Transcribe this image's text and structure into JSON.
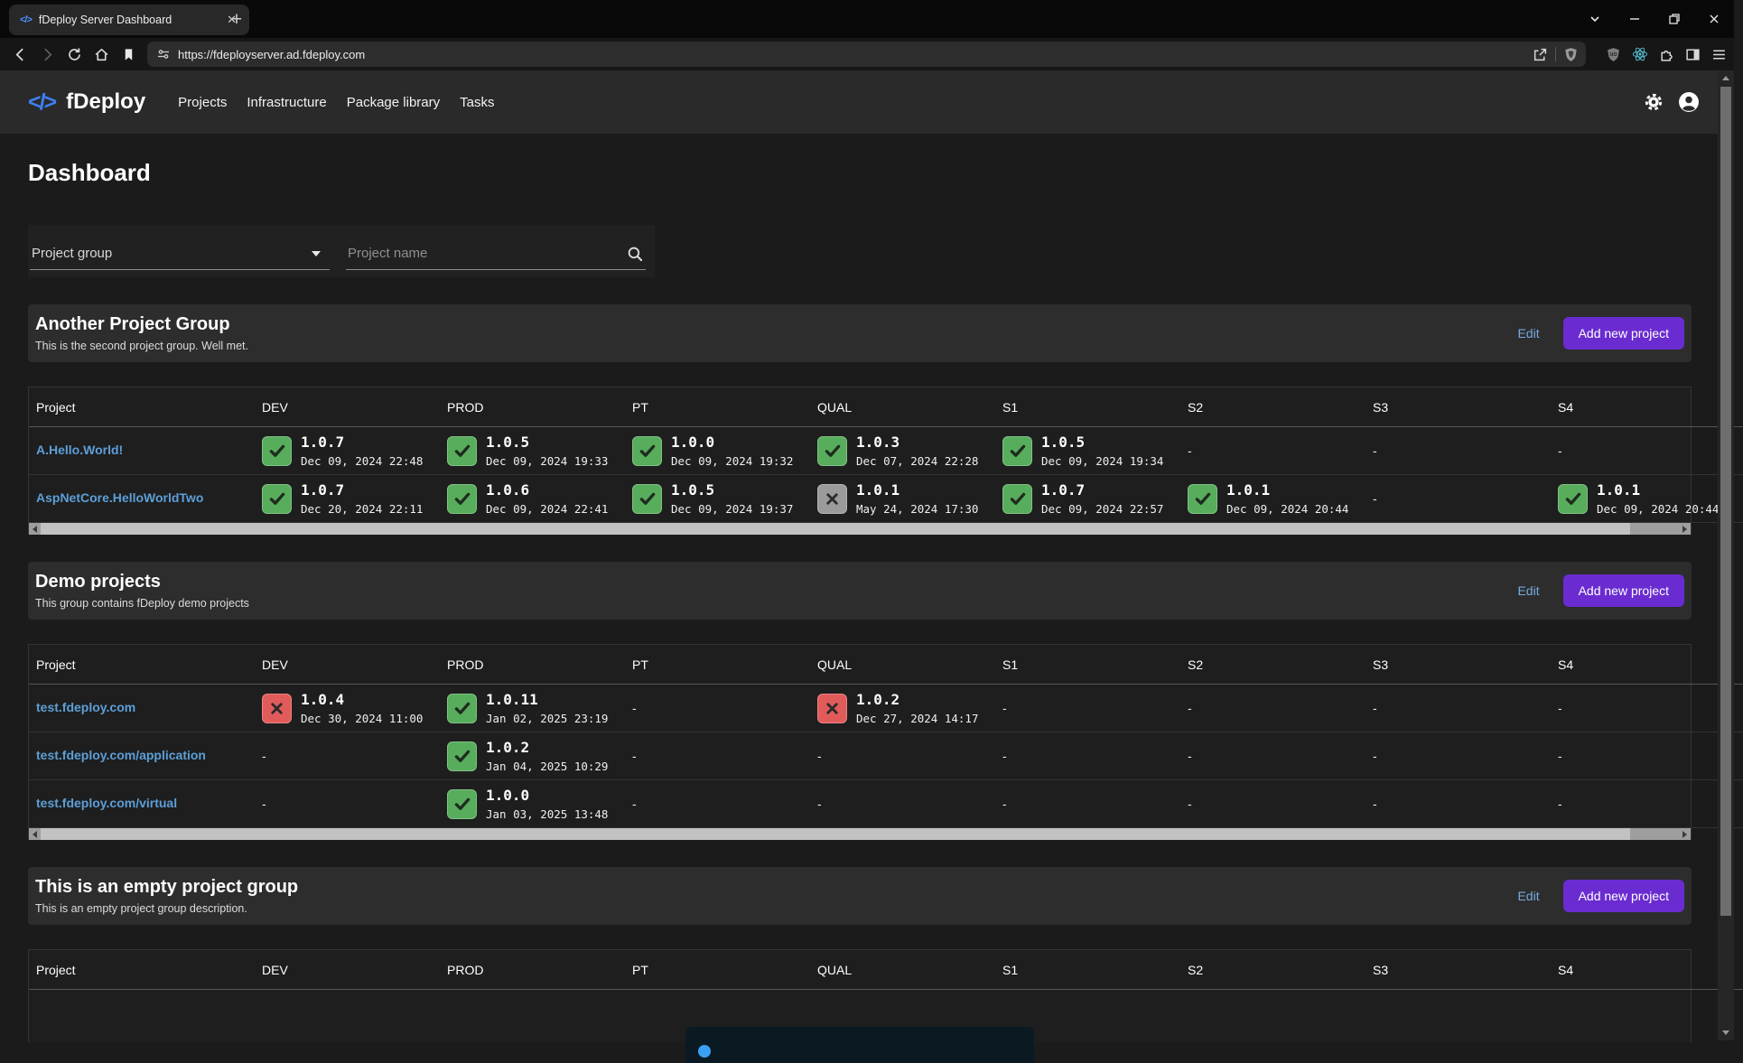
{
  "browser": {
    "tab_title": "fDeploy Server Dashboard",
    "url": "https://fdeployserver.ad.fdeploy.com"
  },
  "labels": {
    "edit": "Edit",
    "add_new_project": "Add new project"
  },
  "app": {
    "brand": "fDeploy",
    "nav": [
      "Projects",
      "Infrastructure",
      "Package library",
      "Tasks"
    ],
    "page_title": "Dashboard",
    "filters": {
      "group_label": "Project group",
      "name_placeholder": "Project name"
    }
  },
  "columns": [
    "Project",
    "DEV",
    "PROD",
    "PT",
    "QUAL",
    "S1",
    "S2",
    "S3",
    "S4"
  ],
  "colors": {
    "accent_purple": "#6a2cd0",
    "status_ok_green": "#57ad5c",
    "status_fail_red": "#e25b5b",
    "status_stale_gray": "#9b9b9b",
    "project_link_blue": "#5c9fd8"
  },
  "groups": [
    {
      "name": "Another Project Group",
      "description": "This is the second project group. Well met.",
      "has_info_alert": false,
      "projects": [
        {
          "name": "A.Hello.World!",
          "cells": [
            {
              "status": "ok",
              "version": "1.0.7",
              "date": "Dec 09, 2024 22:48"
            },
            {
              "status": "ok",
              "version": "1.0.5",
              "date": "Dec 09, 2024 19:33"
            },
            {
              "status": "ok",
              "version": "1.0.0",
              "date": "Dec 09, 2024 19:32"
            },
            {
              "status": "ok",
              "version": "1.0.3",
              "date": "Dec 07, 2024 22:28"
            },
            {
              "status": "ok",
              "version": "1.0.5",
              "date": "Dec 09, 2024 19:34"
            },
            {
              "status": "none"
            },
            {
              "status": "none"
            },
            {
              "status": "none"
            }
          ]
        },
        {
          "name": "AspNetCore.HelloWorldTwo",
          "cells": [
            {
              "status": "ok",
              "version": "1.0.7",
              "date": "Dec 20, 2024 22:11"
            },
            {
              "status": "ok",
              "version": "1.0.6",
              "date": "Dec 09, 2024 22:41"
            },
            {
              "status": "ok",
              "version": "1.0.5",
              "date": "Dec 09, 2024 19:37"
            },
            {
              "status": "stale",
              "version": "1.0.1",
              "date": "May 24, 2024 17:30"
            },
            {
              "status": "ok",
              "version": "1.0.7",
              "date": "Dec 09, 2024 22:57"
            },
            {
              "status": "ok",
              "version": "1.0.1",
              "date": "Dec 09, 2024 20:44"
            },
            {
              "status": "none"
            },
            {
              "status": "ok",
              "version": "1.0.1",
              "date": "Dec 09, 2024 20:44"
            }
          ]
        }
      ]
    },
    {
      "name": "Demo projects",
      "description": "This group contains fDeploy demo projects",
      "has_info_alert": false,
      "projects": [
        {
          "name": "test.fdeploy.com",
          "cells": [
            {
              "status": "fail",
              "version": "1.0.4",
              "date": "Dec 30, 2024 11:00"
            },
            {
              "status": "ok",
              "version": "1.0.11",
              "date": "Jan 02, 2025 23:19"
            },
            {
              "status": "none"
            },
            {
              "status": "fail",
              "version": "1.0.2",
              "date": "Dec 27, 2024 14:17"
            },
            {
              "status": "none"
            },
            {
              "status": "none"
            },
            {
              "status": "none"
            },
            {
              "status": "none"
            }
          ]
        },
        {
          "name": "test.fdeploy.com/application",
          "cells": [
            {
              "status": "none"
            },
            {
              "status": "ok",
              "version": "1.0.2",
              "date": "Jan 04, 2025 10:29"
            },
            {
              "status": "none"
            },
            {
              "status": "none"
            },
            {
              "status": "none"
            },
            {
              "status": "none"
            },
            {
              "status": "none"
            },
            {
              "status": "none"
            }
          ]
        },
        {
          "name": "test.fdeploy.com/virtual",
          "cells": [
            {
              "status": "none"
            },
            {
              "status": "ok",
              "version": "1.0.0",
              "date": "Jan 03, 2025 13:48"
            },
            {
              "status": "none"
            },
            {
              "status": "none"
            },
            {
              "status": "none"
            },
            {
              "status": "none"
            },
            {
              "status": "none"
            },
            {
              "status": "none"
            }
          ]
        }
      ]
    },
    {
      "name": "This is an empty project group",
      "description": "This is an empty project group description.",
      "has_info_alert": true,
      "projects": []
    }
  ]
}
